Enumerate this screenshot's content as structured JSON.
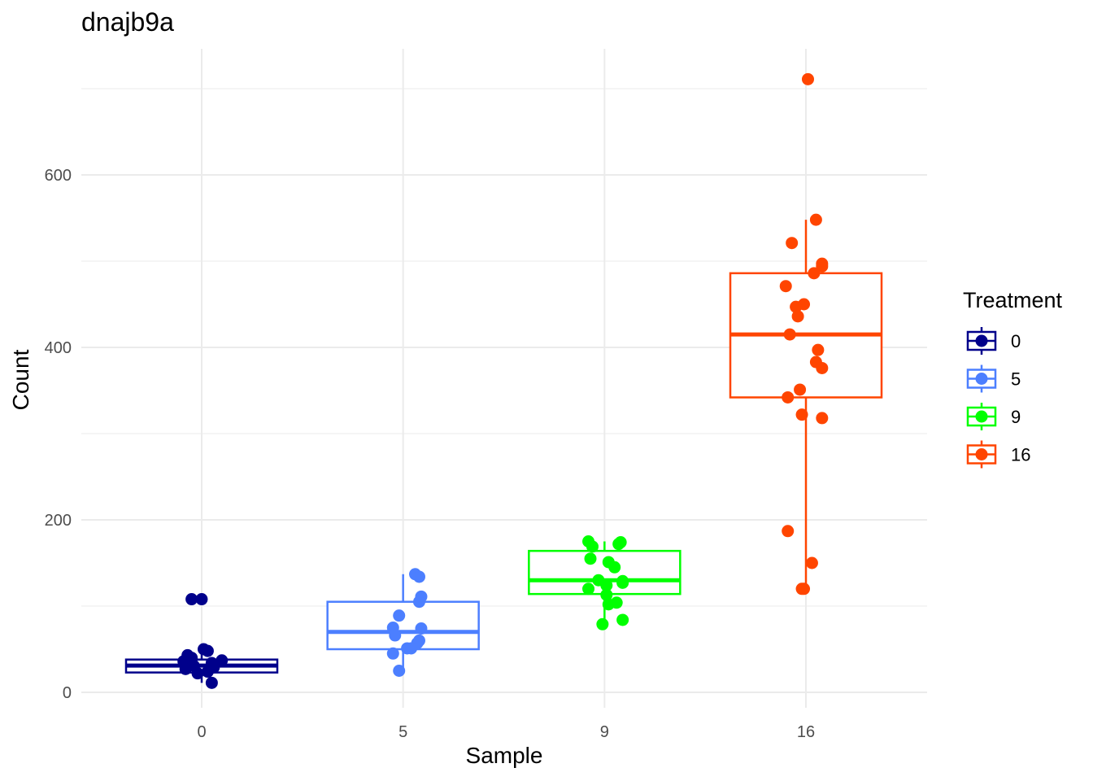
{
  "chart_data": {
    "type": "boxplot",
    "title": "dnajb9a",
    "xlabel": "Sample",
    "ylabel": "Count",
    "categories": [
      "0",
      "5",
      "9",
      "16"
    ],
    "yticks": [
      0,
      200,
      400,
      600
    ],
    "ylim": [
      -15,
      745
    ],
    "grid": true,
    "legend": {
      "title": "Treatment",
      "position": "right",
      "entries": [
        "0",
        "5",
        "9",
        "16"
      ]
    },
    "colors": [
      "#00008B",
      "#4C7FFF",
      "#00FF00",
      "#FF4500"
    ],
    "boxes": [
      {
        "q1": 23,
        "median": 31,
        "q3": 38,
        "whisker_low": 11,
        "whisker_high": 50
      },
      {
        "q1": 50,
        "median": 70,
        "q3": 105,
        "whisker_low": 26,
        "whisker_high": 137
      },
      {
        "q1": 114,
        "median": 130,
        "q3": 164,
        "whisker_low": 80,
        "whisker_high": 175
      },
      {
        "q1": 342,
        "median": 415,
        "q3": 486,
        "whisker_low": 120,
        "whisker_high": 548
      }
    ],
    "points": [
      [
        [
          -0.05,
          108
        ],
        [
          0.0,
          108
        ],
        [
          0.01,
          50
        ],
        [
          0.03,
          48
        ],
        [
          -0.07,
          43
        ],
        [
          -0.05,
          40
        ],
        [
          0.1,
          37
        ],
        [
          -0.09,
          36
        ],
        [
          0.05,
          34
        ],
        [
          -0.04,
          31
        ],
        [
          0.06,
          29
        ],
        [
          -0.08,
          27
        ],
        [
          0.03,
          24
        ],
        [
          -0.02,
          22
        ],
        [
          0.05,
          11
        ]
      ],
      [
        [
          0.06,
          137
        ],
        [
          0.08,
          134
        ],
        [
          0.09,
          111
        ],
        [
          0.08,
          105
        ],
        [
          -0.02,
          89
        ],
        [
          -0.05,
          75
        ],
        [
          0.09,
          74
        ],
        [
          -0.04,
          66
        ],
        [
          0.08,
          60
        ],
        [
          0.07,
          57
        ],
        [
          0.02,
          51
        ],
        [
          0.04,
          51
        ],
        [
          -0.05,
          45
        ],
        [
          -0.02,
          25
        ]
      ],
      [
        [
          -0.08,
          175
        ],
        [
          -0.06,
          169
        ],
        [
          0.07,
          172
        ],
        [
          0.08,
          174
        ],
        [
          -0.07,
          155
        ],
        [
          0.02,
          151
        ],
        [
          0.05,
          145
        ],
        [
          -0.03,
          130
        ],
        [
          0.09,
          129
        ],
        [
          0.09,
          127
        ],
        [
          0.01,
          124
        ],
        [
          -0.08,
          120
        ],
        [
          0.01,
          113
        ],
        [
          0.06,
          104
        ],
        [
          0.02,
          102
        ],
        [
          0.09,
          84
        ],
        [
          -0.01,
          79
        ]
      ],
      [
        [
          0.01,
          711
        ],
        [
          0.05,
          548
        ],
        [
          -0.07,
          521
        ],
        [
          0.08,
          497
        ],
        [
          0.08,
          494
        ],
        [
          0.04,
          486
        ],
        [
          -0.1,
          471
        ],
        [
          -0.01,
          450
        ],
        [
          -0.05,
          447
        ],
        [
          -0.04,
          436
        ],
        [
          -0.08,
          415
        ],
        [
          0.06,
          397
        ],
        [
          0.05,
          383
        ],
        [
          0.08,
          376
        ],
        [
          -0.03,
          351
        ],
        [
          -0.09,
          342
        ],
        [
          -0.02,
          322
        ],
        [
          0.08,
          318
        ],
        [
          -0.09,
          187
        ],
        [
          0.03,
          150
        ],
        [
          -0.01,
          120
        ],
        [
          -0.02,
          120
        ]
      ]
    ]
  }
}
